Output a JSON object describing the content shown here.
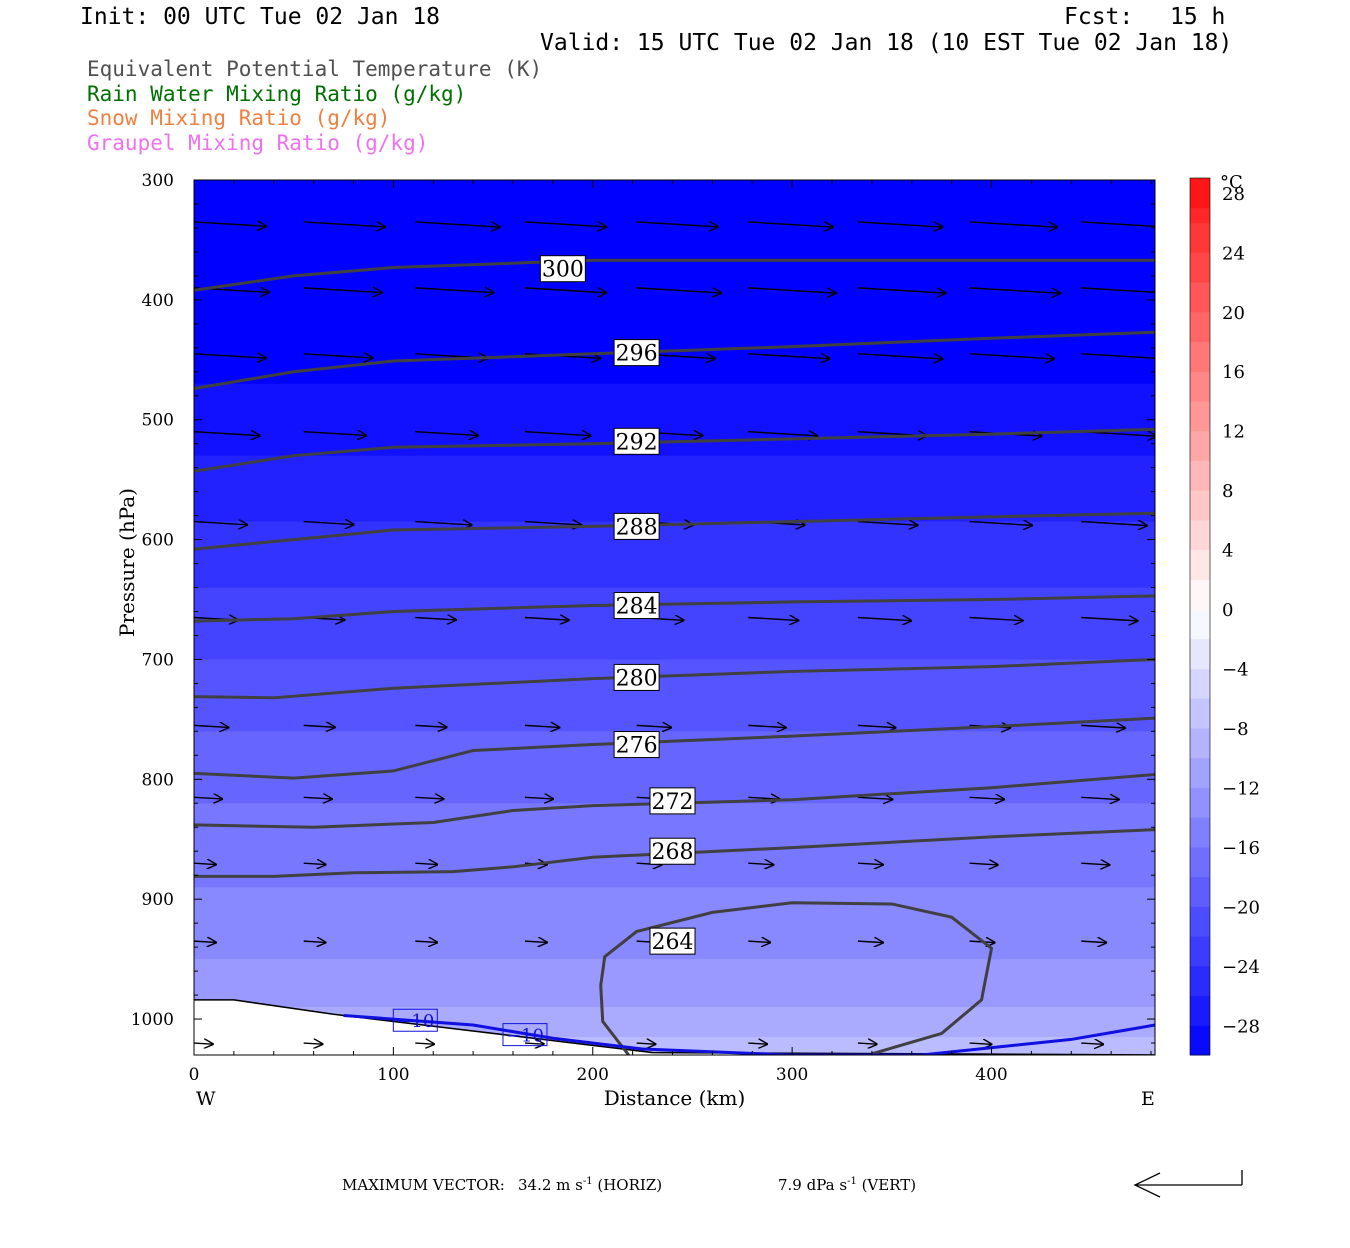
{
  "header": {
    "init": "Init: 00 UTC Tue 02 Jan 18",
    "fcst_label": "Fcst:",
    "fcst_value": "15 h",
    "valid": "Valid: 15 UTC Tue 02 Jan 18 (10 EST Tue 02 Jan 18)"
  },
  "legend": [
    {
      "label": "Equivalent Potential Temperature (K)",
      "color": "#505050"
    },
    {
      "label": "Rain Water Mixing Ratio (g/kg)",
      "color": "#007000"
    },
    {
      "label": "Snow Mixing Ratio (g/kg)",
      "color": "#f08040"
    },
    {
      "label": "Graupel Mixing Ratio (g/kg)",
      "color": "#f070f0"
    }
  ],
  "chart_data": {
    "type": "cross-section",
    "xlabel": "Distance (km)",
    "ylabel": "Pressure (hPa)",
    "x_ticks": [
      "0",
      "100",
      "200",
      "300",
      "400"
    ],
    "x_end_labels": {
      "left": "W",
      "right": "E"
    },
    "y_ticks": [
      "300",
      "400",
      "500",
      "600",
      "700",
      "800",
      "900",
      "1000"
    ],
    "xlim": [
      0,
      482
    ],
    "ylim": [
      300,
      1030
    ],
    "y_scale": "linear",
    "fill_levels_C": [
      -30,
      -28,
      -26,
      -24,
      -22,
      -20,
      -18,
      -16,
      -14,
      -12,
      -10,
      -8,
      -6,
      -4,
      -2,
      0,
      2,
      4,
      6,
      8,
      10,
      12,
      14,
      16,
      18,
      20,
      22,
      24,
      26,
      28,
      30
    ],
    "colorbar_title": "°C",
    "colorbar_labels": [
      "28",
      "24",
      "20",
      "16",
      "12",
      "8",
      "4",
      "0",
      "−4",
      "−8",
      "−12",
      "−16",
      "−20",
      "−24",
      "−28"
    ],
    "colorbar_label_values": [
      28,
      24,
      20,
      16,
      12,
      8,
      4,
      0,
      -4,
      -8,
      -12,
      -16,
      -20,
      -24,
      -28
    ],
    "theta_e_contours": [
      {
        "label": "300",
        "value": 300,
        "label_x": 185,
        "label_p": 374,
        "points": [
          [
            0,
            392
          ],
          [
            50,
            380
          ],
          [
            100,
            373
          ],
          [
            200,
            367
          ],
          [
            300,
            367
          ],
          [
            482,
            367
          ]
        ]
      },
      {
        "label": "296",
        "value": 296,
        "label_x": 222,
        "label_p": 444,
        "points": [
          [
            0,
            474
          ],
          [
            50,
            460
          ],
          [
            100,
            451
          ],
          [
            200,
            445
          ],
          [
            300,
            439
          ],
          [
            400,
            432
          ],
          [
            482,
            427
          ]
        ]
      },
      {
        "label": "292",
        "value": 292,
        "label_x": 222,
        "label_p": 518,
        "points": [
          [
            0,
            543
          ],
          [
            50,
            530
          ],
          [
            100,
            523
          ],
          [
            200,
            520
          ],
          [
            300,
            516
          ],
          [
            400,
            512
          ],
          [
            482,
            508
          ]
        ]
      },
      {
        "label": "288",
        "value": 288,
        "label_x": 222,
        "label_p": 589,
        "points": [
          [
            0,
            608
          ],
          [
            50,
            600
          ],
          [
            100,
            592
          ],
          [
            200,
            589
          ],
          [
            300,
            585
          ],
          [
            400,
            581
          ],
          [
            482,
            578
          ]
        ]
      },
      {
        "label": "284",
        "value": 284,
        "label_x": 222,
        "label_p": 655,
        "points": [
          [
            0,
            668
          ],
          [
            50,
            666
          ],
          [
            100,
            660
          ],
          [
            200,
            655
          ],
          [
            300,
            652
          ],
          [
            400,
            650
          ],
          [
            482,
            647
          ]
        ]
      },
      {
        "label": "280",
        "value": 280,
        "label_x": 222,
        "label_p": 715,
        "points": [
          [
            0,
            731
          ],
          [
            40,
            732
          ],
          [
            100,
            724
          ],
          [
            200,
            716
          ],
          [
            300,
            710
          ],
          [
            400,
            706
          ],
          [
            482,
            700
          ]
        ]
      },
      {
        "label": "276",
        "value": 276,
        "label_x": 222,
        "label_p": 771,
        "points": [
          [
            0,
            795
          ],
          [
            50,
            799
          ],
          [
            100,
            793
          ],
          [
            140,
            776
          ],
          [
            200,
            771
          ],
          [
            300,
            764
          ],
          [
            400,
            756
          ],
          [
            482,
            749
          ]
        ]
      },
      {
        "label": "272",
        "value": 272,
        "label_x": 240,
        "label_p": 818,
        "points": [
          [
            0,
            838
          ],
          [
            60,
            840
          ],
          [
            120,
            836
          ],
          [
            160,
            826
          ],
          [
            200,
            822
          ],
          [
            300,
            817
          ],
          [
            400,
            807
          ],
          [
            482,
            796
          ]
        ]
      },
      {
        "label": "268",
        "value": 268,
        "label_x": 240,
        "label_p": 860,
        "points": [
          [
            0,
            881
          ],
          [
            40,
            881
          ],
          [
            80,
            878
          ],
          [
            130,
            877
          ],
          [
            160,
            873
          ],
          [
            200,
            865
          ],
          [
            300,
            857
          ],
          [
            400,
            848
          ],
          [
            482,
            842
          ]
        ]
      },
      {
        "label": "264",
        "value": 264,
        "label_x": 240,
        "label_p": 935,
        "points": [
          [
            218,
            1030
          ],
          [
            205,
            1002
          ],
          [
            204,
            972
          ],
          [
            206,
            948
          ],
          [
            222,
            927
          ],
          [
            260,
            911
          ],
          [
            300,
            903
          ],
          [
            350,
            904
          ],
          [
            380,
            915
          ],
          [
            400,
            941
          ],
          [
            395,
            984
          ],
          [
            375,
            1012
          ],
          [
            340,
            1029
          ]
        ]
      }
    ],
    "temperature_contour": {
      "label": "−10",
      "color": "#1010e0",
      "label_x": [
        111,
        166
      ],
      "label_p": [
        1001,
        1013
      ],
      "points": [
        [
          75,
          997
        ],
        [
          140,
          1005
        ],
        [
          180,
          1016
        ],
        [
          225,
          1025
        ],
        [
          300,
          1030
        ],
        [
          365,
          1030
        ],
        [
          405,
          1023
        ],
        [
          440,
          1017
        ],
        [
          482,
          1005
        ]
      ]
    },
    "terrain": [
      [
        0,
        984
      ],
      [
        20,
        984
      ],
      [
        70,
        996
      ],
      [
        130,
        1008
      ],
      [
        180,
        1018
      ],
      [
        230,
        1028
      ],
      [
        482,
        1030
      ]
    ],
    "wind_vectors": {
      "note": "horizontal wind speed (m/s, same scale as max vector) per pressure row",
      "rows": [
        {
          "p": 335,
          "speeds": [
            23,
            26,
            27,
            26,
            26,
            27,
            27,
            28,
            29
          ]
        },
        {
          "p": 390,
          "speeds": [
            24,
            25,
            25,
            26,
            27,
            28,
            28,
            29,
            30
          ]
        },
        {
          "p": 445,
          "speeds": [
            23,
            22,
            23,
            24,
            25,
            26,
            27,
            27,
            28
          ]
        },
        {
          "p": 510,
          "speeds": [
            21,
            20,
            20,
            21,
            21,
            22,
            22,
            23,
            24
          ]
        },
        {
          "p": 585,
          "speeds": [
            17,
            16,
            18,
            18,
            18,
            18,
            19,
            20,
            21
          ]
        },
        {
          "p": 665,
          "speeds": [
            14,
            13,
            13,
            14,
            15,
            16,
            17,
            17,
            18
          ]
        },
        {
          "p": 755,
          "speeds": [
            11,
            10,
            10,
            11,
            11,
            12,
            12,
            13,
            14
          ]
        },
        {
          "p": 815,
          "speeds": [
            9,
            9,
            9,
            9,
            10,
            10,
            11,
            11,
            12
          ]
        },
        {
          "p": 870,
          "speeds": [
            7,
            7,
            7,
            7,
            8,
            8,
            8,
            9,
            9
          ]
        },
        {
          "p": 935,
          "speeds": [
            7,
            7,
            7,
            7,
            7,
            7,
            8,
            8,
            8
          ]
        },
        {
          "p": 1020,
          "speeds": [
            6,
            6,
            6,
            6,
            6,
            6,
            6,
            7,
            7
          ]
        }
      ]
    }
  },
  "footer": {
    "max_vector_label": "MAXIMUM VECTOR:",
    "horiz_value": "34.2 m s",
    "horiz_unit": " (HORIZ)",
    "vert_value": "7.9 dPa s",
    "vert_unit": " (VERT)",
    "superscript": "-1"
  }
}
